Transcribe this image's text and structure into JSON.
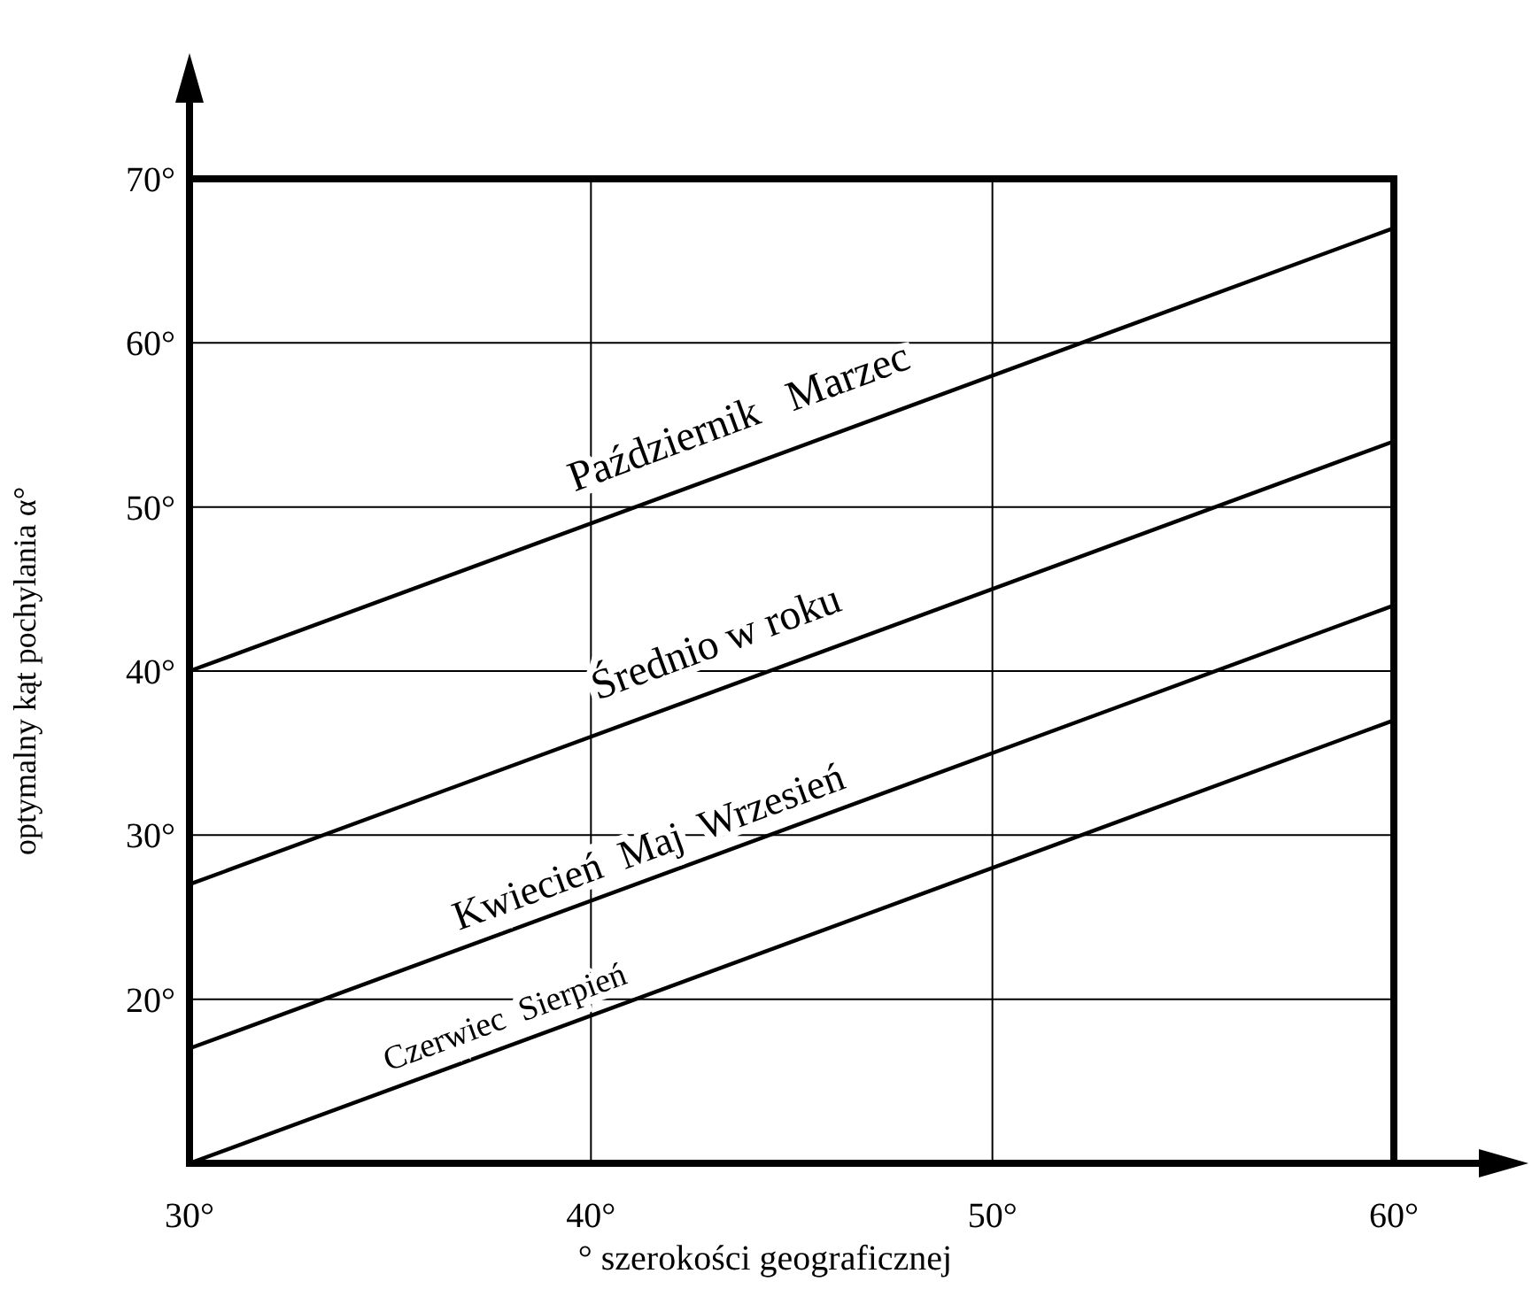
{
  "chart_data": {
    "type": "line",
    "xlabel": "° szerokości geograficznej",
    "ylabel": "optymalny kąt pochylania α°",
    "x": [
      30,
      60
    ],
    "xlim": [
      30,
      60
    ],
    "ylim": [
      10,
      70
    ],
    "xticks": [
      {
        "value": 30,
        "label": "30°"
      },
      {
        "value": 40,
        "label": "40°"
      },
      {
        "value": 50,
        "label": "50°"
      },
      {
        "value": 60,
        "label": "60°"
      }
    ],
    "yticks": [
      {
        "value": 20,
        "label": "20°"
      },
      {
        "value": 30,
        "label": "30°"
      },
      {
        "value": 40,
        "label": "40°"
      },
      {
        "value": 50,
        "label": "50°"
      },
      {
        "value": 60,
        "label": "60°"
      },
      {
        "value": 70,
        "label": "70°"
      }
    ],
    "grid": true,
    "line_style": "solid",
    "series": [
      {
        "name": "Październik   Marzec",
        "color": "#000000",
        "values": [
          40,
          67
        ]
      },
      {
        "name": "Średnio w roku",
        "color": "#000000",
        "values": [
          27,
          54
        ]
      },
      {
        "name": "Kwiecień  Maj  Wrzesień",
        "color": "#000000",
        "values": [
          17,
          44
        ]
      },
      {
        "name": "Czerwiec  Sierpień",
        "color": "#000000",
        "values": [
          10,
          37
        ]
      }
    ]
  }
}
